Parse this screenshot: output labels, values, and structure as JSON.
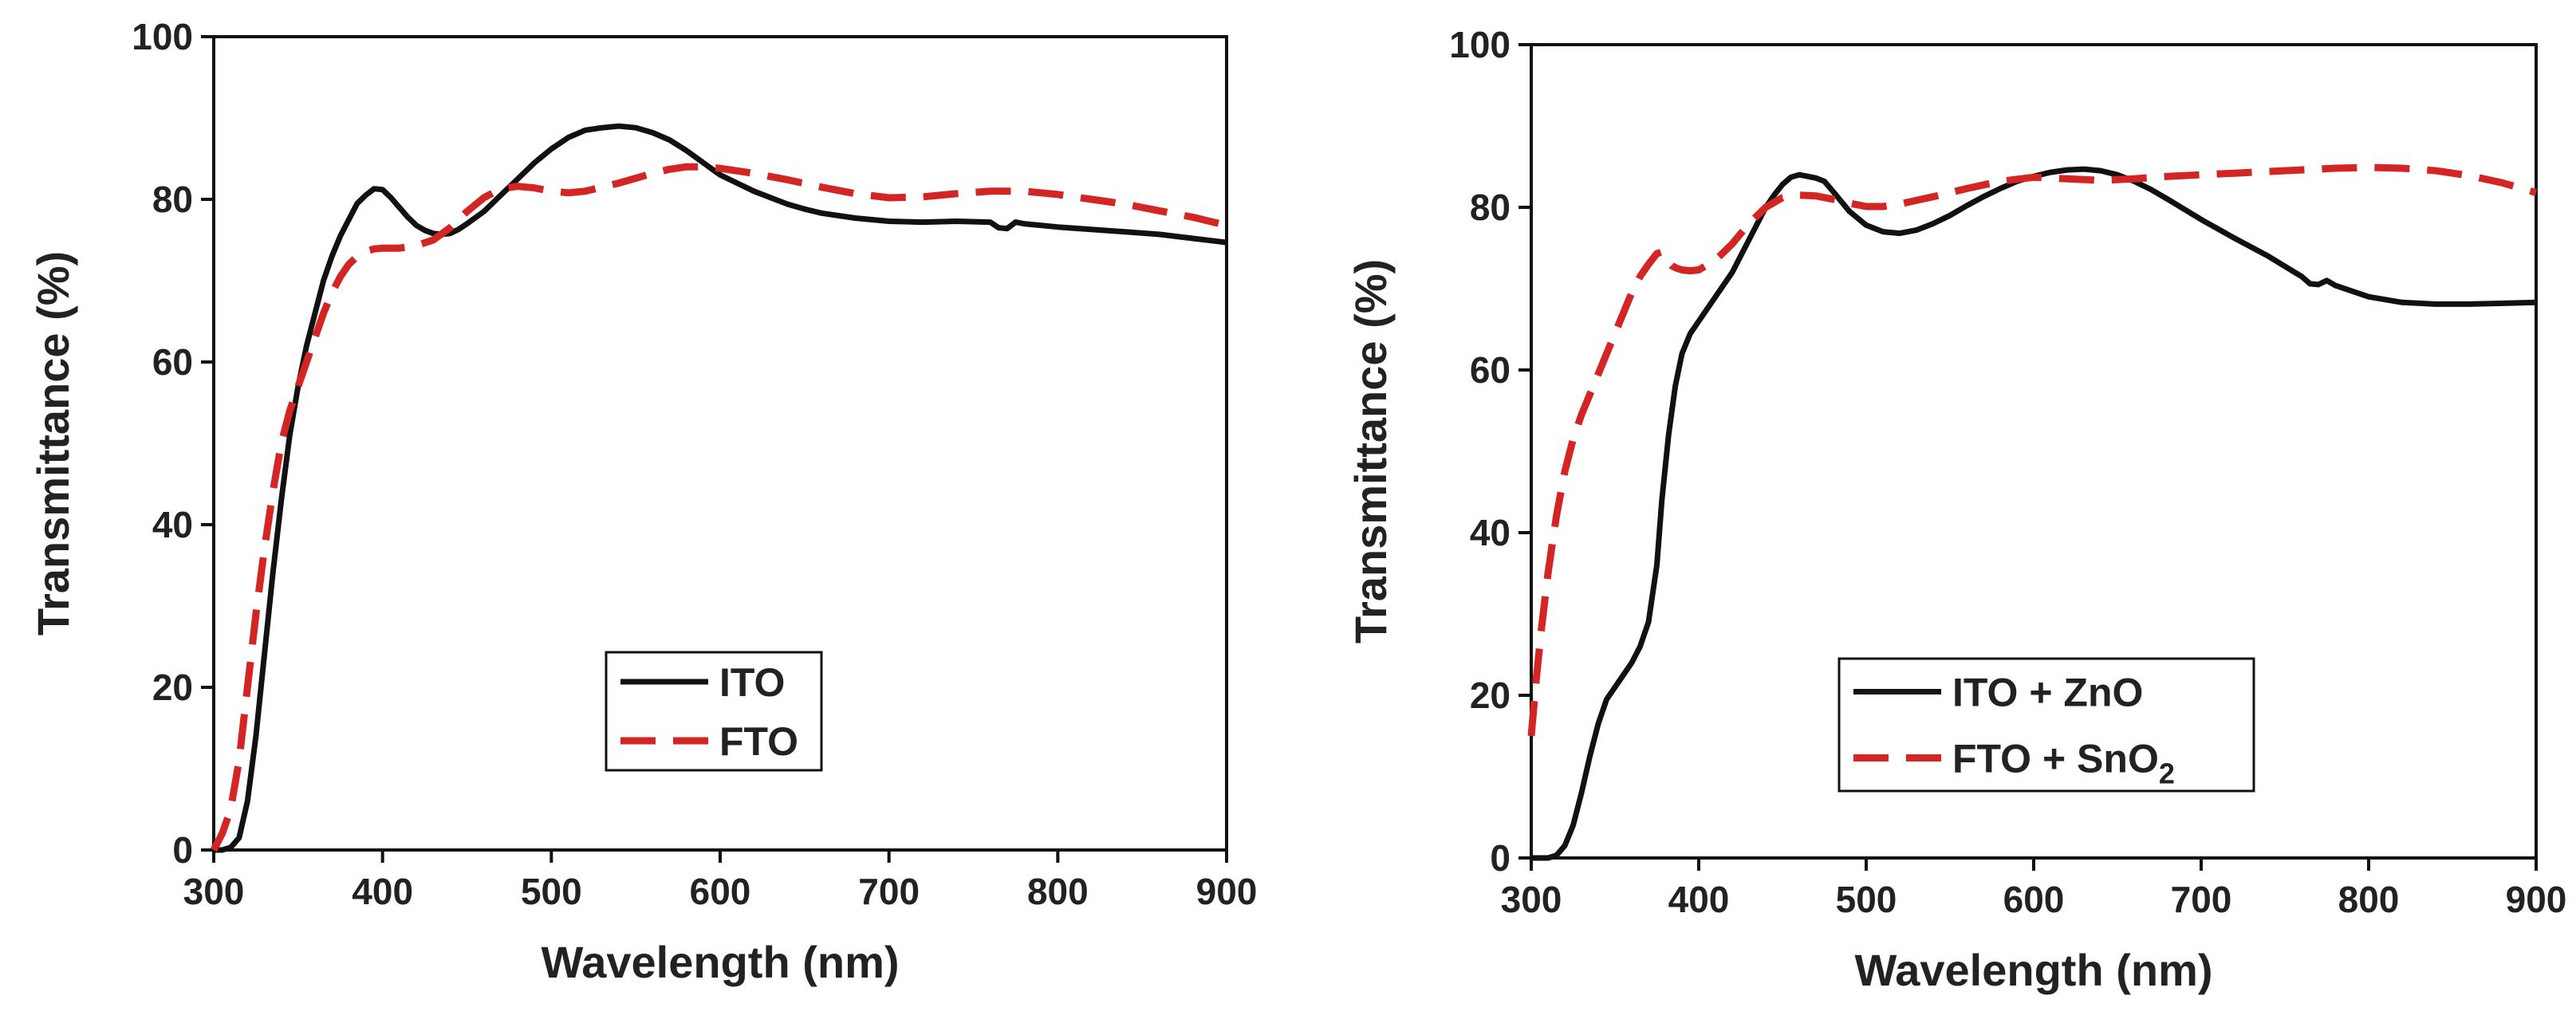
{
  "chart_data": [
    {
      "type": "line",
      "title": "",
      "xlabel": "Wavelength (nm)",
      "ylabel": "Transmittance (%)",
      "xlim": [
        300,
        900
      ],
      "ylim": [
        0,
        100
      ],
      "x_ticks": [
        "300",
        "400",
        "500",
        "600",
        "700",
        "800",
        "900"
      ],
      "y_ticks": [
        "0",
        "20",
        "40",
        "60",
        "80",
        "100"
      ],
      "legend_position": "lower-center",
      "series": [
        {
          "name": "ITO",
          "color": "#111111",
          "dash": "solid",
          "x": [
            300,
            305,
            310,
            315,
            320,
            325,
            330,
            335,
            340,
            345,
            350,
            355,
            360,
            365,
            370,
            375,
            380,
            385,
            390,
            395,
            400,
            405,
            410,
            415,
            420,
            425,
            430,
            435,
            440,
            445,
            450,
            460,
            470,
            480,
            490,
            500,
            510,
            520,
            530,
            540,
            550,
            560,
            570,
            580,
            590,
            600,
            610,
            620,
            630,
            640,
            650,
            660,
            680,
            700,
            720,
            740,
            760,
            765,
            770,
            775,
            780,
            800,
            820,
            840,
            860,
            880,
            900
          ],
          "y": [
            0,
            0,
            0.3,
            1.5,
            6,
            14,
            24,
            34,
            43,
            51,
            57,
            62,
            66,
            70,
            73,
            75.5,
            77.5,
            79.5,
            80.5,
            81.3,
            81.2,
            80.2,
            79,
            77.8,
            76.8,
            76.2,
            75.8,
            75.7,
            75.8,
            76.3,
            77,
            78.5,
            80.5,
            82.5,
            84.5,
            86.2,
            87.6,
            88.5,
            88.8,
            89,
            88.8,
            88.2,
            87.3,
            86,
            84.5,
            83,
            82,
            81,
            80.2,
            79.4,
            78.8,
            78.3,
            77.7,
            77.3,
            77.2,
            77.3,
            77.2,
            76.5,
            76.4,
            77.2,
            77,
            76.6,
            76.3,
            76,
            75.7,
            75.2,
            74.7
          ]
        },
        {
          "name": "FTO",
          "color": "#d42525",
          "dash": "dashed",
          "x": [
            300,
            305,
            310,
            315,
            320,
            325,
            330,
            335,
            340,
            345,
            350,
            355,
            360,
            365,
            370,
            375,
            380,
            385,
            390,
            395,
            400,
            410,
            420,
            430,
            440,
            450,
            460,
            470,
            480,
            490,
            500,
            510,
            520,
            530,
            540,
            550,
            560,
            570,
            580,
            590,
            600,
            620,
            640,
            660,
            680,
            700,
            720,
            740,
            760,
            780,
            800,
            820,
            840,
            860,
            880,
            900
          ],
          "y": [
            0,
            2,
            5,
            11,
            20,
            29,
            37,
            44,
            50,
            54,
            57,
            60,
            63,
            66,
            68.5,
            70.5,
            72,
            73,
            73.6,
            73.9,
            74,
            74,
            74.3,
            75,
            76.5,
            78.5,
            80.2,
            81.3,
            81.6,
            81.4,
            81,
            80.8,
            81,
            81.5,
            82,
            82.6,
            83.2,
            83.7,
            84,
            84,
            83.8,
            83.2,
            82.4,
            81.5,
            80.7,
            80.2,
            80.3,
            80.7,
            81,
            81,
            80.6,
            80,
            79.4,
            78.6,
            77.8,
            76.8
          ]
        }
      ]
    },
    {
      "type": "line",
      "title": "",
      "xlabel": "Wavelength (nm)",
      "ylabel": "Transmittance (%)",
      "xlim": [
        300,
        900
      ],
      "ylim": [
        0,
        100
      ],
      "x_ticks": [
        "300",
        "400",
        "500",
        "600",
        "700",
        "800",
        "900"
      ],
      "y_ticks": [
        "0",
        "20",
        "40",
        "60",
        "80",
        "100"
      ],
      "legend_position": "lower-center",
      "series": [
        {
          "name": "ITO + ZnO",
          "legend_parts": [
            "ITO + ZnO"
          ],
          "color": "#111111",
          "dash": "solid",
          "x": [
            300,
            305,
            310,
            315,
            320,
            325,
            330,
            335,
            340,
            345,
            350,
            355,
            360,
            365,
            370,
            375,
            378,
            382,
            386,
            390,
            395,
            400,
            405,
            410,
            415,
            420,
            425,
            430,
            435,
            440,
            445,
            450,
            455,
            460,
            465,
            470,
            475,
            480,
            490,
            500,
            510,
            520,
            530,
            540,
            550,
            560,
            570,
            580,
            590,
            600,
            610,
            620,
            630,
            640,
            650,
            660,
            670,
            680,
            700,
            720,
            740,
            760,
            765,
            770,
            775,
            780,
            800,
            820,
            840,
            860,
            880,
            900
          ],
          "y": [
            0,
            0,
            0,
            0.3,
            1.5,
            4,
            8,
            12.5,
            16.5,
            19.5,
            21,
            22.5,
            24,
            26,
            29,
            36,
            44,
            52,
            58,
            62,
            64.5,
            66,
            67.5,
            69,
            70.5,
            72,
            74,
            76,
            78,
            80,
            81.5,
            82.8,
            83.7,
            84,
            83.8,
            83.6,
            83.2,
            82,
            79.5,
            77.8,
            77,
            76.8,
            77.2,
            78,
            79,
            80.2,
            81.3,
            82.3,
            83.2,
            83.8,
            84.3,
            84.6,
            84.7,
            84.5,
            84,
            83.2,
            82.2,
            81,
            78.5,
            76.2,
            74,
            71.5,
            70.6,
            70.5,
            71,
            70.4,
            69,
            68.3,
            68.1,
            68.1,
            68.2,
            68.3
          ]
        },
        {
          "name": "FTO + SnO2",
          "legend_parts": [
            "FTO + SnO",
            "2"
          ],
          "color": "#d42525",
          "dash": "dashed",
          "x": [
            300,
            303,
            306,
            310,
            315,
            320,
            325,
            330,
            335,
            340,
            345,
            350,
            355,
            360,
            365,
            370,
            375,
            378,
            381,
            384,
            387,
            390,
            395,
            400,
            410,
            420,
            430,
            440,
            450,
            460,
            470,
            480,
            490,
            500,
            510,
            520,
            540,
            560,
            580,
            600,
            620,
            640,
            660,
            680,
            700,
            720,
            740,
            760,
            780,
            800,
            820,
            840,
            860,
            880,
            900
          ],
          "y": [
            15,
            22,
            28,
            35,
            42,
            47.5,
            51.5,
            54.5,
            57,
            59.5,
            62,
            64.5,
            67,
            69.5,
            71.5,
            73,
            74.3,
            74.5,
            73.5,
            72.8,
            72.5,
            72.3,
            72.2,
            72.3,
            73.5,
            75.5,
            78,
            80,
            81.2,
            81.5,
            81.4,
            81,
            80.5,
            80.1,
            80.1,
            80.4,
            81.3,
            82.3,
            83.2,
            83.7,
            83.5,
            83.3,
            83.5,
            83.8,
            84,
            84.2,
            84.4,
            84.6,
            84.8,
            84.9,
            84.8,
            84.5,
            83.9,
            83,
            81.8
          ]
        }
      ]
    }
  ]
}
